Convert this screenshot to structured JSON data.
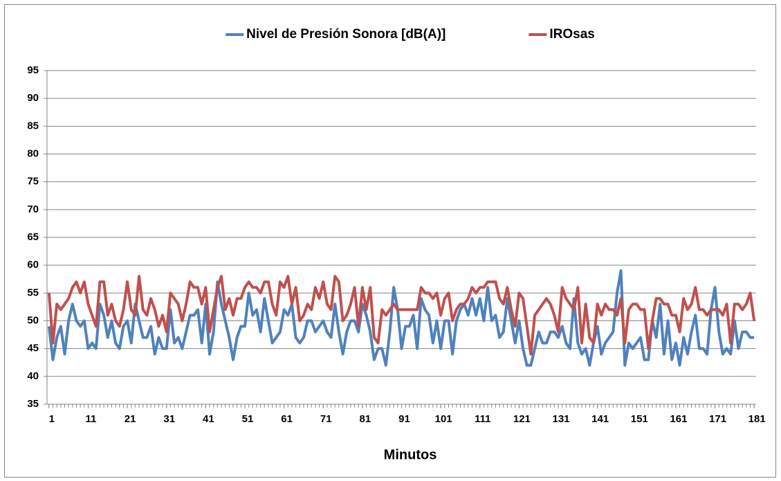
{
  "chart_data": {
    "type": "line",
    "x_label": "Minutos",
    "legend": "top",
    "grid": true,
    "x": [
      1,
      2,
      3,
      4,
      5,
      6,
      7,
      8,
      9,
      10,
      11,
      12,
      13,
      14,
      15,
      16,
      17,
      18,
      19,
      20,
      21,
      22,
      23,
      24,
      25,
      26,
      27,
      28,
      29,
      30,
      31,
      32,
      33,
      34,
      35,
      36,
      37,
      38,
      39,
      40,
      41,
      42,
      43,
      44,
      45,
      46,
      47,
      48,
      49,
      50,
      51,
      52,
      53,
      54,
      55,
      56,
      57,
      58,
      59,
      60,
      61,
      62,
      63,
      64,
      65,
      66,
      67,
      68,
      69,
      70,
      71,
      72,
      73,
      74,
      75,
      76,
      77,
      78,
      79,
      80,
      81,
      82,
      83,
      84,
      85,
      86,
      87,
      88,
      89,
      90,
      91,
      92,
      93,
      94,
      95,
      96,
      97,
      98,
      99,
      100,
      101,
      102,
      103,
      104,
      105,
      106,
      107,
      108,
      109,
      110,
      111,
      112,
      113,
      114,
      115,
      116,
      117,
      118,
      119,
      120,
      121,
      122,
      123,
      124,
      125,
      126,
      127,
      128,
      129,
      130,
      131,
      132,
      133,
      134,
      135,
      136,
      137,
      138,
      139,
      140,
      141,
      142,
      143,
      144,
      145,
      146,
      147,
      148,
      149,
      150,
      151,
      152,
      153,
      154,
      155,
      156,
      157,
      158,
      159,
      160,
      161,
      162,
      163,
      164,
      165,
      166,
      167,
      168,
      169,
      170,
      171,
      172,
      173,
      174,
      175,
      176,
      177,
      178,
      179,
      180,
      181
    ],
    "xlim": [
      0.5,
      181.5
    ],
    "xticks": [
      1,
      11,
      21,
      31,
      41,
      51,
      61,
      71,
      81,
      91,
      101,
      111,
      121,
      131,
      141,
      151,
      161,
      171,
      181
    ],
    "ylim": [
      35,
      95
    ],
    "yticks": [
      35,
      40,
      45,
      50,
      55,
      60,
      65,
      70,
      75,
      80,
      85,
      90,
      95
    ],
    "series": [
      {
        "name": "Nivel de Presión Sonora [dB(A)]",
        "color": "#4f81bd",
        "values": [
          49,
          43,
          47,
          49,
          44,
          50,
          53,
          50,
          49,
          50,
          45,
          46,
          45,
          53,
          51,
          47,
          50,
          46,
          45,
          49,
          50,
          46,
          53,
          50,
          47,
          47,
          49,
          44,
          47,
          45,
          45,
          52,
          46,
          47,
          45,
          48,
          51,
          51,
          52,
          46,
          53,
          44,
          48,
          57,
          53,
          50,
          47,
          43,
          47,
          49,
          49,
          55,
          51,
          52,
          48,
          54,
          50,
          46,
          47,
          48,
          52,
          51,
          53,
          47,
          46,
          47,
          50,
          50,
          48,
          49,
          50,
          48,
          47,
          53,
          48,
          44,
          48,
          50,
          50,
          48,
          53,
          51,
          48,
          43,
          45,
          45,
          42,
          48,
          56,
          52,
          45,
          49,
          49,
          51,
          45,
          54,
          52,
          51,
          46,
          50,
          45,
          50,
          50,
          44,
          50,
          52,
          53,
          51,
          54,
          51,
          54,
          50,
          56,
          50,
          51,
          47,
          48,
          54,
          50,
          46,
          50,
          45,
          42,
          42,
          45,
          48,
          46,
          46,
          48,
          48,
          47,
          49,
          46,
          45,
          54,
          46,
          44,
          45,
          42,
          46,
          49,
          44,
          46,
          47,
          48,
          55,
          59,
          42,
          46,
          45,
          46,
          47,
          43,
          43,
          50,
          47,
          53,
          44,
          50,
          43,
          46,
          42,
          47,
          44,
          48,
          51,
          45,
          45,
          44,
          52,
          56,
          48,
          44,
          45,
          44,
          50,
          45,
          48,
          48,
          47,
          47
        ]
      },
      {
        "name": "IROsas",
        "color": "#c0504d",
        "values": [
          55,
          46,
          53,
          52,
          53,
          54,
          56,
          57,
          55,
          57,
          53,
          51,
          49,
          57,
          57,
          51,
          53,
          50,
          49,
          52,
          57,
          52,
          51,
          58,
          52,
          51,
          54,
          52,
          49,
          51,
          48,
          55,
          54,
          53,
          50,
          53,
          57,
          56,
          56,
          53,
          56,
          48,
          52,
          56,
          58,
          52,
          54,
          51,
          54,
          54,
          56,
          57,
          56,
          56,
          55,
          57,
          57,
          53,
          51,
          57,
          56,
          58,
          53,
          56,
          50,
          51,
          53,
          52,
          56,
          54,
          57,
          53,
          52,
          58,
          57,
          50,
          51,
          53,
          56,
          49,
          56,
          52,
          56,
          47,
          46,
          52,
          51,
          52,
          53,
          52,
          52,
          52,
          52,
          52,
          52,
          56,
          55,
          55,
          54,
          55,
          51,
          54,
          55,
          50,
          52,
          53,
          53,
          54,
          56,
          55,
          56,
          56,
          57,
          57,
          57,
          54,
          53,
          56,
          52,
          49,
          55,
          54,
          49,
          44,
          51,
          52,
          53,
          54,
          53,
          51,
          48,
          56,
          54,
          53,
          52,
          56,
          46,
          53,
          47,
          46,
          53,
          51,
          53,
          52,
          52,
          51,
          54,
          46,
          52,
          53,
          53,
          52,
          52,
          45,
          50,
          54,
          54,
          53,
          53,
          51,
          51,
          48,
          54,
          52,
          53,
          56,
          52,
          52,
          51,
          52,
          52,
          52,
          51,
          53,
          46,
          53,
          53,
          52,
          53,
          55,
          50
        ]
      }
    ]
  }
}
